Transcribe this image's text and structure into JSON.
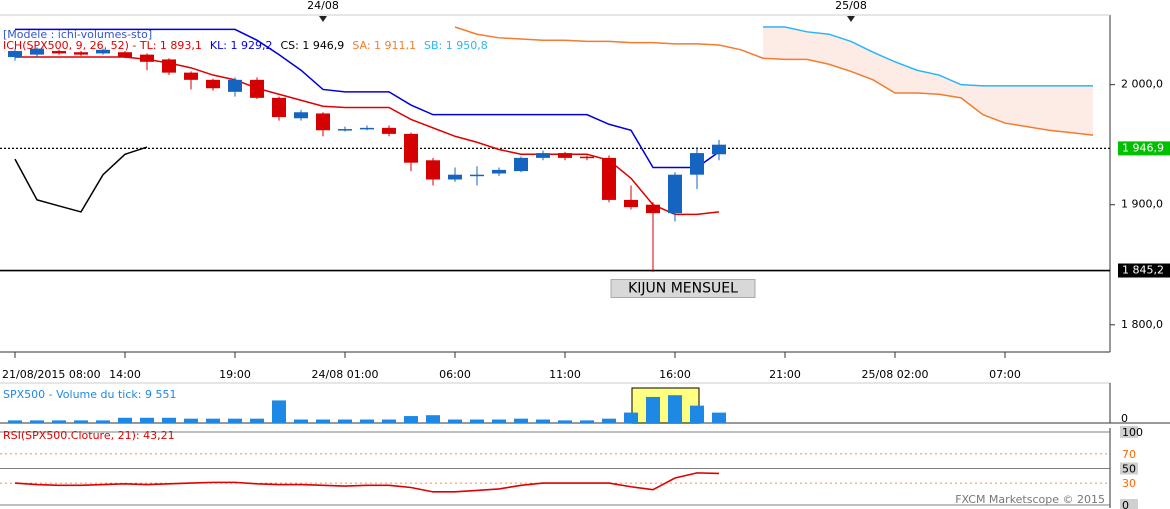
{
  "chart_data": [
    {
      "type": "candlestick",
      "title": "[Modele : ichi-volumes-sto]",
      "indicator": "ICH(SPX500, 9, 26, 52) -  ",
      "categories": [
        "21/08/2015 08:00",
        null,
        null,
        null,
        null,
        "14:00",
        null,
        null,
        null,
        null,
        "19:00",
        null,
        null,
        null,
        null,
        "24/08 01:00",
        null,
        null,
        null,
        null,
        "06:00",
        null,
        null,
        null,
        null,
        "11:00",
        null,
        null,
        null,
        null,
        "16:00",
        null,
        null,
        null,
        null,
        "21:00",
        null,
        null,
        null,
        null,
        "25/08 02:00",
        null,
        null,
        null,
        null,
        "07:00",
        null,
        null,
        null,
        null
      ],
      "top_categories": [
        null,
        null,
        null,
        null,
        null,
        null,
        null,
        null,
        null,
        null,
        null,
        null,
        null,
        null,
        "24/08",
        null,
        null,
        null,
        null,
        null,
        null,
        null,
        null,
        null,
        null,
        null,
        null,
        null,
        null,
        null,
        null,
        null,
        null,
        null,
        null,
        null,
        null,
        null,
        "25/08",
        null,
        null,
        null,
        null,
        null,
        null,
        null,
        null,
        null,
        null,
        null
      ],
      "open": [
        2023,
        2025,
        2028,
        2027,
        2026,
        2027,
        2025,
        2021,
        2010,
        2004,
        1994,
        2004,
        1989,
        1972,
        1976,
        1962,
        1963,
        1964,
        1959,
        1937,
        1921,
        1924,
        1926,
        1928,
        1939,
        1943,
        1940,
        1939,
        1904,
        1900,
        1893,
        1925,
        1942,
        null,
        null,
        null,
        null,
        null,
        null,
        null,
        null,
        null,
        null,
        null,
        null,
        null,
        null,
        null,
        null,
        null
      ],
      "high": [
        2030,
        2031,
        2029,
        2028,
        2030,
        2028,
        2026,
        2022,
        2011,
        2005,
        2006,
        2006,
        1990,
        1979,
        1977,
        1965,
        1966,
        1966,
        1960,
        1939,
        1931,
        1932,
        1931,
        1940,
        1945,
        1944,
        1941,
        1941,
        1916,
        1902,
        1927,
        1948,
        1954,
        null,
        null,
        null,
        null,
        null,
        null,
        null,
        null,
        null,
        null,
        null,
        null,
        null,
        null,
        null,
        null,
        null
      ],
      "low": [
        2020,
        2023,
        2025,
        2024,
        2025,
        2022,
        2012,
        2008,
        1996,
        1995,
        1990,
        1988,
        1970,
        1970,
        1957,
        1961,
        1962,
        1957,
        1928,
        1916,
        1919,
        1916,
        1924,
        1927,
        1937,
        1937,
        1937,
        1902,
        1896,
        1844,
        1886,
        1913,
        1937,
        null,
        null,
        null,
        null,
        null,
        null,
        null,
        null,
        null,
        null,
        null,
        null,
        null,
        null,
        null,
        null,
        null
      ],
      "close": [
        2028,
        2030,
        2026,
        2025,
        2029,
        2023,
        2019,
        2010,
        2004,
        1997,
        2004,
        1989,
        1973,
        1977,
        1962,
        1963,
        1964,
        1959,
        1935,
        1921,
        1925,
        1925,
        1929,
        1939,
        1943,
        1939,
        1939,
        1904,
        1898,
        1893,
        1925,
        1943,
        1950,
        null,
        null,
        null,
        null,
        null,
        null,
        null,
        null,
        null,
        null,
        null,
        null,
        null,
        null,
        null,
        null,
        null
      ],
      "up_color": "#1565c0",
      "down_color": "#d50000",
      "series": [
        {
          "name": "TL: 1 893,1",
          "color": "#e00000",
          "values": [
            2023,
            2023,
            2023,
            2023,
            2023,
            2023,
            2021,
            2018,
            2014,
            2008,
            2004,
            1997,
            1992,
            1987,
            1982,
            1981,
            1981,
            1981,
            1971,
            1964,
            1957,
            1952,
            1946,
            1942,
            1942,
            1942,
            1942,
            1937,
            1922,
            1900,
            1892,
            1892,
            1894,
            null,
            null,
            null,
            null,
            null,
            null,
            null,
            null,
            null,
            null,
            null,
            null,
            null,
            null,
            null,
            null,
            null
          ]
        },
        {
          "name": "KL: 1 929,2",
          "color": "#0000dd",
          "values": [
            2046,
            2046,
            2046,
            2046,
            2046,
            2046,
            2046,
            2046,
            2046,
            2046,
            2046,
            2037,
            2025,
            2012,
            1996,
            1994,
            1994,
            1994,
            1983,
            1975,
            1975,
            1975,
            1975,
            1975,
            1975,
            1975,
            1975,
            1967,
            1962,
            1931,
            1931,
            1931,
            1944,
            null,
            null,
            null,
            null,
            null,
            null,
            null,
            null,
            null,
            null,
            null,
            null,
            null,
            null,
            null,
            null,
            null
          ]
        },
        {
          "name": "CS: 1 946,9",
          "color": "#000000",
          "values": [
            1938,
            1904,
            1899,
            1894,
            1925,
            1942,
            1948,
            null,
            null,
            null,
            null,
            null,
            null,
            null,
            null,
            null,
            null,
            null,
            null,
            null,
            null,
            null,
            null,
            null,
            null,
            null,
            null,
            null,
            null,
            null,
            null,
            null,
            null,
            null,
            null,
            null,
            null,
            null,
            null,
            null,
            null,
            null,
            null,
            null,
            null,
            null,
            null,
            null,
            null,
            null
          ]
        },
        {
          "name": "SA: 1 911,1",
          "color": "#f47b30",
          "values": [
            null,
            null,
            null,
            null,
            null,
            null,
            null,
            null,
            null,
            null,
            null,
            null,
            null,
            null,
            null,
            null,
            null,
            null,
            null,
            null,
            2048,
            2042,
            2039,
            2038,
            2037,
            2037,
            2036,
            2036,
            2035,
            2035,
            2034,
            2034,
            2033,
            2029,
            2022,
            2021,
            2021,
            2017,
            2011,
            2004,
            1993,
            1993,
            1992,
            1989,
            1975,
            1968,
            1965,
            1962,
            1960,
            1958
          ]
        },
        {
          "name": "SB: 1 950,8",
          "color": "#29b6f6",
          "values": [
            null,
            null,
            null,
            null,
            null,
            null,
            null,
            null,
            null,
            null,
            null,
            null,
            null,
            null,
            null,
            null,
            null,
            null,
            null,
            null,
            null,
            null,
            null,
            null,
            null,
            null,
            null,
            null,
            null,
            null,
            null,
            null,
            null,
            null,
            2048,
            2048,
            2044,
            2042,
            2036,
            2027,
            2019,
            2012,
            2008,
            2000,
            1999,
            1999,
            1999,
            1999,
            1999,
            1999
          ]
        }
      ],
      "cloud_color": "#fdece6",
      "ylim": [
        1779,
        2058
      ],
      "yticks": [
        {
          "value": 1800,
          "label": "1 800,0"
        },
        {
          "value": 1900,
          "label": "1 900,0"
        },
        {
          "value": 2000,
          "label": "2 000,0"
        }
      ],
      "hlines": [
        {
          "value": 1946.9,
          "label": "1 946,9",
          "color": "#000000",
          "label_color": "#00c000",
          "dotted": true
        },
        {
          "value": 1845.2,
          "label": "1 845,2",
          "color": "#000000",
          "label_color": "#000000",
          "dotted": false,
          "note": "KIJUN MENSUEL"
        }
      ]
    },
    {
      "type": "bar",
      "title": "SPX500 - Volume du tick: 9 551",
      "color": "#1e88e5",
      "values": [
        2400,
        2400,
        2400,
        2400,
        2400,
        4800,
        4800,
        4800,
        4000,
        4000,
        4000,
        4000,
        20800,
        3200,
        3200,
        3200,
        3200,
        3200,
        6400,
        7200,
        3200,
        3200,
        3200,
        4000,
        3200,
        2400,
        2400,
        4000,
        9600,
        24000,
        25600,
        16000,
        9551,
        null,
        null,
        null,
        null,
        null,
        null,
        null,
        null,
        null,
        null,
        null,
        null,
        null,
        null,
        null,
        null,
        null
      ],
      "ylim": [
        0,
        35000
      ],
      "yticks": [
        0
      ]
    },
    {
      "type": "line",
      "title": "RSI(SPX500.Cloture, 21): 43,21",
      "color": "#e00000",
      "values": [
        30,
        28,
        27,
        27,
        28,
        29,
        28,
        29,
        30,
        31,
        31,
        29,
        28,
        28,
        27,
        26,
        27,
        27,
        24,
        18,
        18,
        20,
        22,
        27,
        30,
        30,
        30,
        30,
        25,
        21,
        37,
        44,
        43.21,
        null,
        null,
        null,
        null,
        null,
        null,
        null,
        null,
        null,
        null,
        null,
        null,
        null,
        null,
        null,
        null,
        null
      ],
      "ylim": [
        0,
        100
      ],
      "yticks": [
        0,
        30,
        50,
        70,
        100
      ],
      "ytick_colors": [
        "#000000",
        "#ff6600",
        "#000000",
        "#ff6600",
        "#000000"
      ]
    }
  ],
  "footer": "FXCM Marketscope © 2015"
}
